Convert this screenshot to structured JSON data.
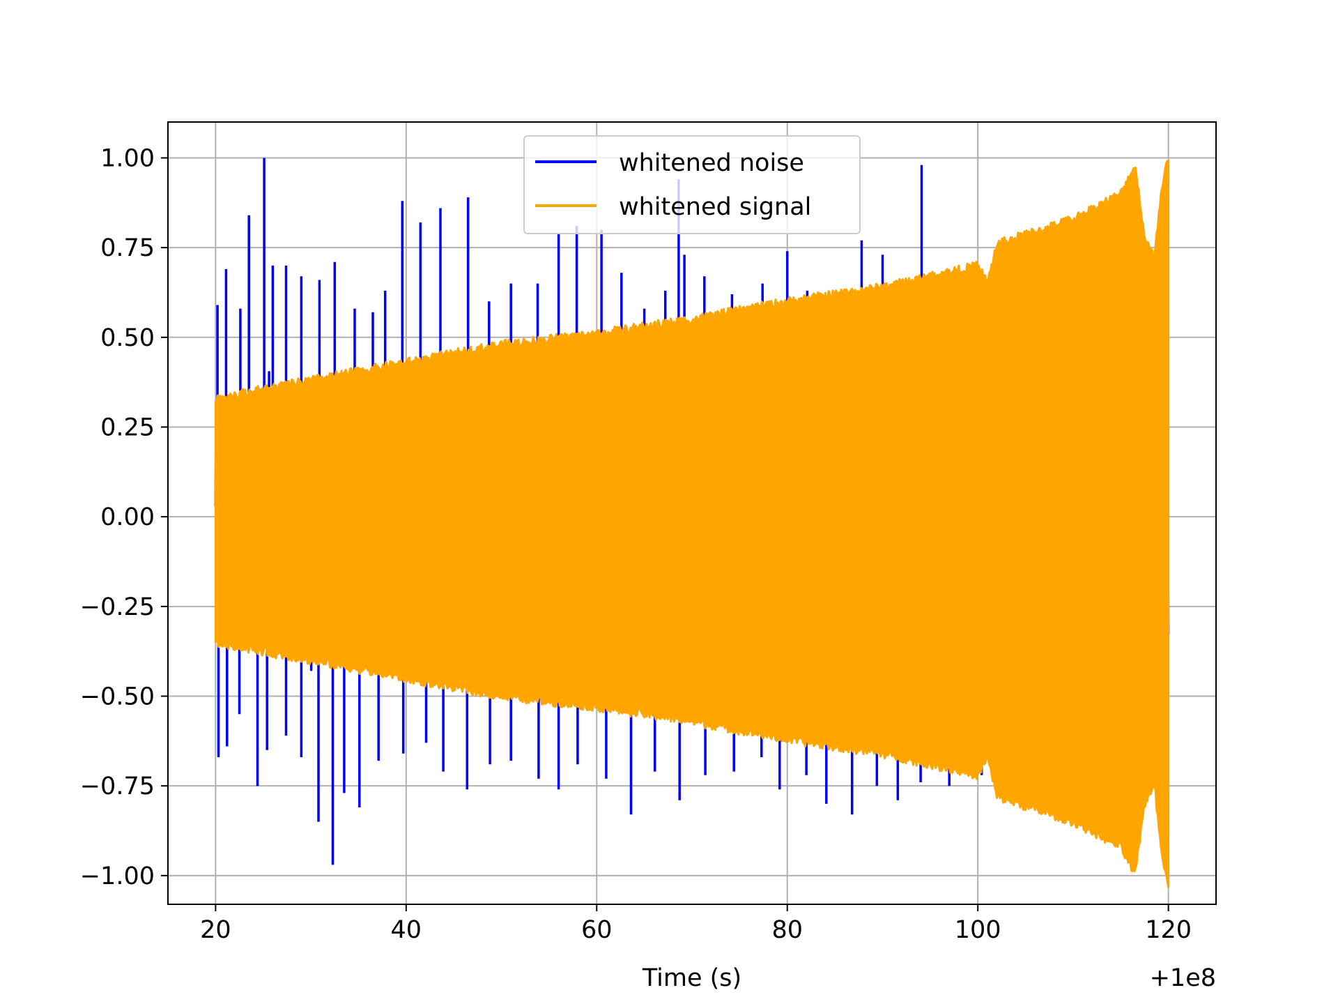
{
  "chart_data": {
    "type": "line",
    "title": "",
    "xlabel": "Time (s)",
    "ylabel": "",
    "x_offset_label": "+1e8",
    "xlim": [
      15,
      125
    ],
    "ylim": [
      -1.08,
      1.1
    ],
    "x_ticks": [
      20,
      40,
      60,
      80,
      100,
      120
    ],
    "x_tick_labels": [
      "20",
      "40",
      "60",
      "80",
      "100",
      "120"
    ],
    "y_ticks": [
      1.0,
      0.75,
      0.5,
      0.25,
      0.0,
      -0.25,
      -0.5,
      -0.75,
      -1.0
    ],
    "y_tick_labels": [
      "1.00",
      "0.75",
      "0.50",
      "0.25",
      "0.00",
      "−0.25",
      "−0.50",
      "−0.75",
      "−1.00"
    ],
    "grid": true,
    "legend_position": "top-center",
    "series": [
      {
        "name": "whitened noise",
        "color": "#0000ff",
        "x_range": [
          20,
          120
        ],
        "typical_amplitude": 0.45,
        "spikes": [
          {
            "x": 20.2,
            "y": 0.59
          },
          {
            "x": 21.1,
            "y": 0.69
          },
          {
            "x": 22.6,
            "y": 0.58
          },
          {
            "x": 23.5,
            "y": 0.84
          },
          {
            "x": 25.1,
            "y": 1.0
          },
          {
            "x": 26.0,
            "y": 0.7
          },
          {
            "x": 27.4,
            "y": 0.7
          },
          {
            "x": 29.0,
            "y": 0.67
          },
          {
            "x": 30.9,
            "y": 0.66
          },
          {
            "x": 32.5,
            "y": 0.71
          },
          {
            "x": 34.6,
            "y": 0.58
          },
          {
            "x": 36.5,
            "y": 0.57
          },
          {
            "x": 37.8,
            "y": 0.63
          },
          {
            "x": 39.6,
            "y": 0.88
          },
          {
            "x": 41.5,
            "y": 0.82
          },
          {
            "x": 43.6,
            "y": 0.86
          },
          {
            "x": 46.5,
            "y": 0.89
          },
          {
            "x": 48.7,
            "y": 0.6
          },
          {
            "x": 51.0,
            "y": 0.65
          },
          {
            "x": 53.8,
            "y": 0.65
          },
          {
            "x": 56.0,
            "y": 0.79
          },
          {
            "x": 57.9,
            "y": 0.81
          },
          {
            "x": 60.5,
            "y": 0.8
          },
          {
            "x": 62.6,
            "y": 0.68
          },
          {
            "x": 65.0,
            "y": 0.58
          },
          {
            "x": 67.2,
            "y": 0.63
          },
          {
            "x": 68.6,
            "y": 0.94
          },
          {
            "x": 69.2,
            "y": 0.73
          },
          {
            "x": 71.3,
            "y": 0.67
          },
          {
            "x": 74.2,
            "y": 0.62
          },
          {
            "x": 77.4,
            "y": 0.65
          },
          {
            "x": 80.0,
            "y": 0.74
          },
          {
            "x": 82.1,
            "y": 0.63
          },
          {
            "x": 85.0,
            "y": 0.62
          },
          {
            "x": 87.8,
            "y": 0.77
          },
          {
            "x": 90.0,
            "y": 0.73
          },
          {
            "x": 92.3,
            "y": 0.64
          },
          {
            "x": 94.1,
            "y": 0.98
          },
          {
            "x": 20.3,
            "y": -0.67
          },
          {
            "x": 21.2,
            "y": -0.64
          },
          {
            "x": 22.5,
            "y": -0.55
          },
          {
            "x": 24.4,
            "y": -0.75
          },
          {
            "x": 25.4,
            "y": -0.65
          },
          {
            "x": 27.4,
            "y": -0.61
          },
          {
            "x": 29.0,
            "y": -0.67
          },
          {
            "x": 30.8,
            "y": -0.85
          },
          {
            "x": 32.3,
            "y": -0.97
          },
          {
            "x": 33.5,
            "y": -0.77
          },
          {
            "x": 35.1,
            "y": -0.81
          },
          {
            "x": 37.1,
            "y": -0.68
          },
          {
            "x": 39.7,
            "y": -0.66
          },
          {
            "x": 42.1,
            "y": -0.63
          },
          {
            "x": 43.9,
            "y": -0.71
          },
          {
            "x": 46.4,
            "y": -0.76
          },
          {
            "x": 48.8,
            "y": -0.69
          },
          {
            "x": 51.0,
            "y": -0.68
          },
          {
            "x": 53.9,
            "y": -0.73
          },
          {
            "x": 56.0,
            "y": -0.76
          },
          {
            "x": 58.0,
            "y": -0.69
          },
          {
            "x": 61.0,
            "y": -0.73
          },
          {
            "x": 63.6,
            "y": -0.83
          },
          {
            "x": 66.1,
            "y": -0.71
          },
          {
            "x": 68.7,
            "y": -0.79
          },
          {
            "x": 71.4,
            "y": -0.72
          },
          {
            "x": 74.4,
            "y": -0.71
          },
          {
            "x": 77.3,
            "y": -0.67
          },
          {
            "x": 79.2,
            "y": -0.76
          },
          {
            "x": 82.0,
            "y": -0.72
          },
          {
            "x": 84.1,
            "y": -0.8
          },
          {
            "x": 86.8,
            "y": -0.83
          },
          {
            "x": 89.4,
            "y": -0.75
          },
          {
            "x": 91.6,
            "y": -0.79
          },
          {
            "x": 94.0,
            "y": -0.74
          },
          {
            "x": 97.0,
            "y": -0.75
          },
          {
            "x": 100.4,
            "y": -0.72
          }
        ]
      },
      {
        "name": "whitened signal",
        "color": "#ffa500",
        "x_range": [
          20,
          120
        ],
        "envelope": [
          {
            "x": 20,
            "y": 0.33
          },
          {
            "x": 30,
            "y": 0.38
          },
          {
            "x": 40,
            "y": 0.43
          },
          {
            "x": 50,
            "y": 0.48
          },
          {
            "x": 60,
            "y": 0.51
          },
          {
            "x": 70,
            "y": 0.55
          },
          {
            "x": 80,
            "y": 0.6
          },
          {
            "x": 90,
            "y": 0.64
          },
          {
            "x": 100,
            "y": 0.7
          },
          {
            "x": 101,
            "y": 0.65
          },
          {
            "x": 102,
            "y": 0.76
          },
          {
            "x": 110,
            "y": 0.83
          },
          {
            "x": 115,
            "y": 0.9
          },
          {
            "x": 116.5,
            "y": 0.98
          },
          {
            "x": 117.5,
            "y": 0.78
          },
          {
            "x": 118.5,
            "y": 0.72
          },
          {
            "x": 119.3,
            "y": 0.92
          },
          {
            "x": 120,
            "y": 1.0
          }
        ]
      }
    ]
  }
}
